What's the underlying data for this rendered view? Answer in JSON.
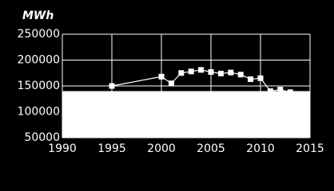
{
  "chart_data": {
    "type": "line",
    "y_label": "MWh",
    "x": [
      1995,
      2000,
      2001,
      2002,
      2003,
      2004,
      2005,
      2006,
      2007,
      2008,
      2009,
      2010,
      2011,
      2012,
      2013
    ],
    "series": [
      {
        "color": "#ffffff",
        "values": [
          150000,
          168000,
          155000,
          175000,
          178000,
          181000,
          177000,
          174000,
          176000,
          172000,
          163000,
          165000,
          140000,
          143000,
          138000
        ]
      }
    ],
    "area": {
      "x": [
        1990,
        2015
      ],
      "values": [
        140000,
        140000
      ],
      "color": "#ffffff"
    },
    "xlim": [
      1990,
      2015
    ],
    "xticks": [
      1990,
      1995,
      2000,
      2005,
      2010,
      2015
    ],
    "ylim": [
      50000,
      250000
    ],
    "yticks": [
      50000,
      100000,
      150000,
      200000,
      250000
    ],
    "grid": true
  }
}
